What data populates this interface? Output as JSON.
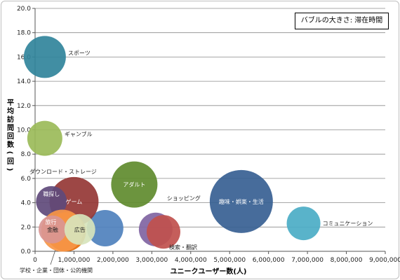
{
  "chart_data": {
    "type": "bubble",
    "title": "",
    "size_legend": "バブルの大きさ: 滞在時間",
    "xlabel": "ユニークユーザー数(人)",
    "ylabel": "平均訪問回数(回)",
    "xlim": [
      0,
      9000000
    ],
    "ylim": [
      0,
      20
    ],
    "x_ticks": [
      "0",
      "1,000,000",
      "2,000,000",
      "3,000,000",
      "4,000,000",
      "5,000,000",
      "6,000,000",
      "7,000,000",
      "8,000,000",
      "9,000,000"
    ],
    "y_ticks": [
      "0.0",
      "2.0",
      "4.0",
      "6.0",
      "8.0",
      "10.0",
      "12.0",
      "14.0",
      "16.0",
      "18.0",
      "20.0"
    ],
    "grid": "horizontal",
    "bubbles": [
      {
        "label": "スポーツ",
        "x": 250000,
        "y": 16.0,
        "r_px": 30,
        "color": "#31849b",
        "label_pos": "right"
      },
      {
        "label": "ギャンブル",
        "x": 250000,
        "y": 9.3,
        "r_px": 25,
        "color": "#9bbb59",
        "label_pos": "right"
      },
      {
        "label": "ダウンロード・ストレージ",
        "x": 1800000,
        "y": 1.9,
        "r_px": 26,
        "color": "#4f81bd",
        "label_pos": "above-left"
      },
      {
        "label": "ゲーム",
        "x": 1000000,
        "y": 4.1,
        "r_px": 35,
        "color": "#953735",
        "label_pos": "inside"
      },
      {
        "label": "アダルト",
        "x": 2550000,
        "y": 5.5,
        "r_px": 33,
        "color": "#5f8b2e",
        "label_pos": "inside"
      },
      {
        "label": "ショッピング",
        "x": 3100000,
        "y": 1.8,
        "r_px": 24,
        "color": "#8064a2",
        "label_pos": "above-right"
      },
      {
        "label": "検索・翻訳",
        "x": 3300000,
        "y": 1.6,
        "r_px": 24,
        "color": "#c0504d",
        "label_pos": "below-right"
      },
      {
        "label": "趣味・娯楽・生活",
        "x": 5300000,
        "y": 4.1,
        "r_px": 45,
        "color": "#376092",
        "label_pos": "inside"
      },
      {
        "label": "コミュニケーション",
        "x": 6900000,
        "y": 2.3,
        "r_px": 24,
        "color": "#4bacc6",
        "label_pos": "right"
      },
      {
        "label": "職探し",
        "x": 420000,
        "y": 4.1,
        "r_px": 22,
        "color": "#604a7b",
        "label_pos": "inside"
      },
      {
        "label": "旅行",
        "x": 800000,
        "y": 1.6,
        "r_px": 28,
        "color": "#e46c0a",
        "label_pos": "inside"
      },
      {
        "label": "学校・企業・団体・公的機関",
        "x": 700000,
        "y": 1.7,
        "r_px": 30,
        "color": "#f79646",
        "label_pos": "below-leader"
      },
      {
        "label": "金融",
        "x": 450000,
        "y": 1.8,
        "r_px": 20,
        "color": "#d99694",
        "label_pos": "inside"
      },
      {
        "label": "広告",
        "x": 1150000,
        "y": 1.8,
        "r_px": 22,
        "color": "#d7e4bc",
        "label_pos": "inside"
      }
    ]
  }
}
